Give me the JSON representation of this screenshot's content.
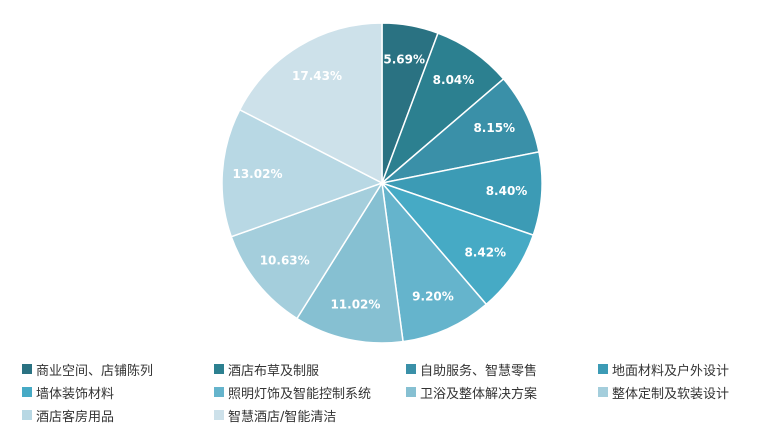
{
  "chart_data": {
    "type": "pie",
    "title": "",
    "legend_position": "bottom",
    "slices": [
      {
        "name": "商业空间、店铺陈列",
        "value": 5.69,
        "label": "5.69%",
        "color": "#2a7282"
      },
      {
        "name": "酒店布草及制服",
        "value": 8.04,
        "label": "8.04%",
        "color": "#2c8090"
      },
      {
        "name": "自助服务、智慧零售",
        "value": 8.15,
        "label": "8.15%",
        "color": "#3a90a8"
      },
      {
        "name": "地面材料及户外设计",
        "value": 8.4,
        "label": "8.40%",
        "color": "#3c9bb5"
      },
      {
        "name": "墙体装饰材料",
        "value": 8.42,
        "label": "8.42%",
        "color": "#46aac5"
      },
      {
        "name": "照明灯饰及智能控制系统",
        "value": 9.2,
        "label": "9.20%",
        "color": "#65b4cc"
      },
      {
        "name": "卫浴及整体解决方案",
        "value": 11.02,
        "label": "11.02%",
        "color": "#86c0d2"
      },
      {
        "name": "整体定制及软装设计",
        "value": 10.63,
        "label": "10.63%",
        "color": "#a4cedc"
      },
      {
        "name": "酒店客房用品",
        "value": 13.02,
        "label": "13.02%",
        "color": "#b8d8e4"
      },
      {
        "name": "智慧酒店/智能清洁",
        "value": 17.43,
        "label": "17.43%",
        "color": "#cde1ea"
      }
    ]
  }
}
